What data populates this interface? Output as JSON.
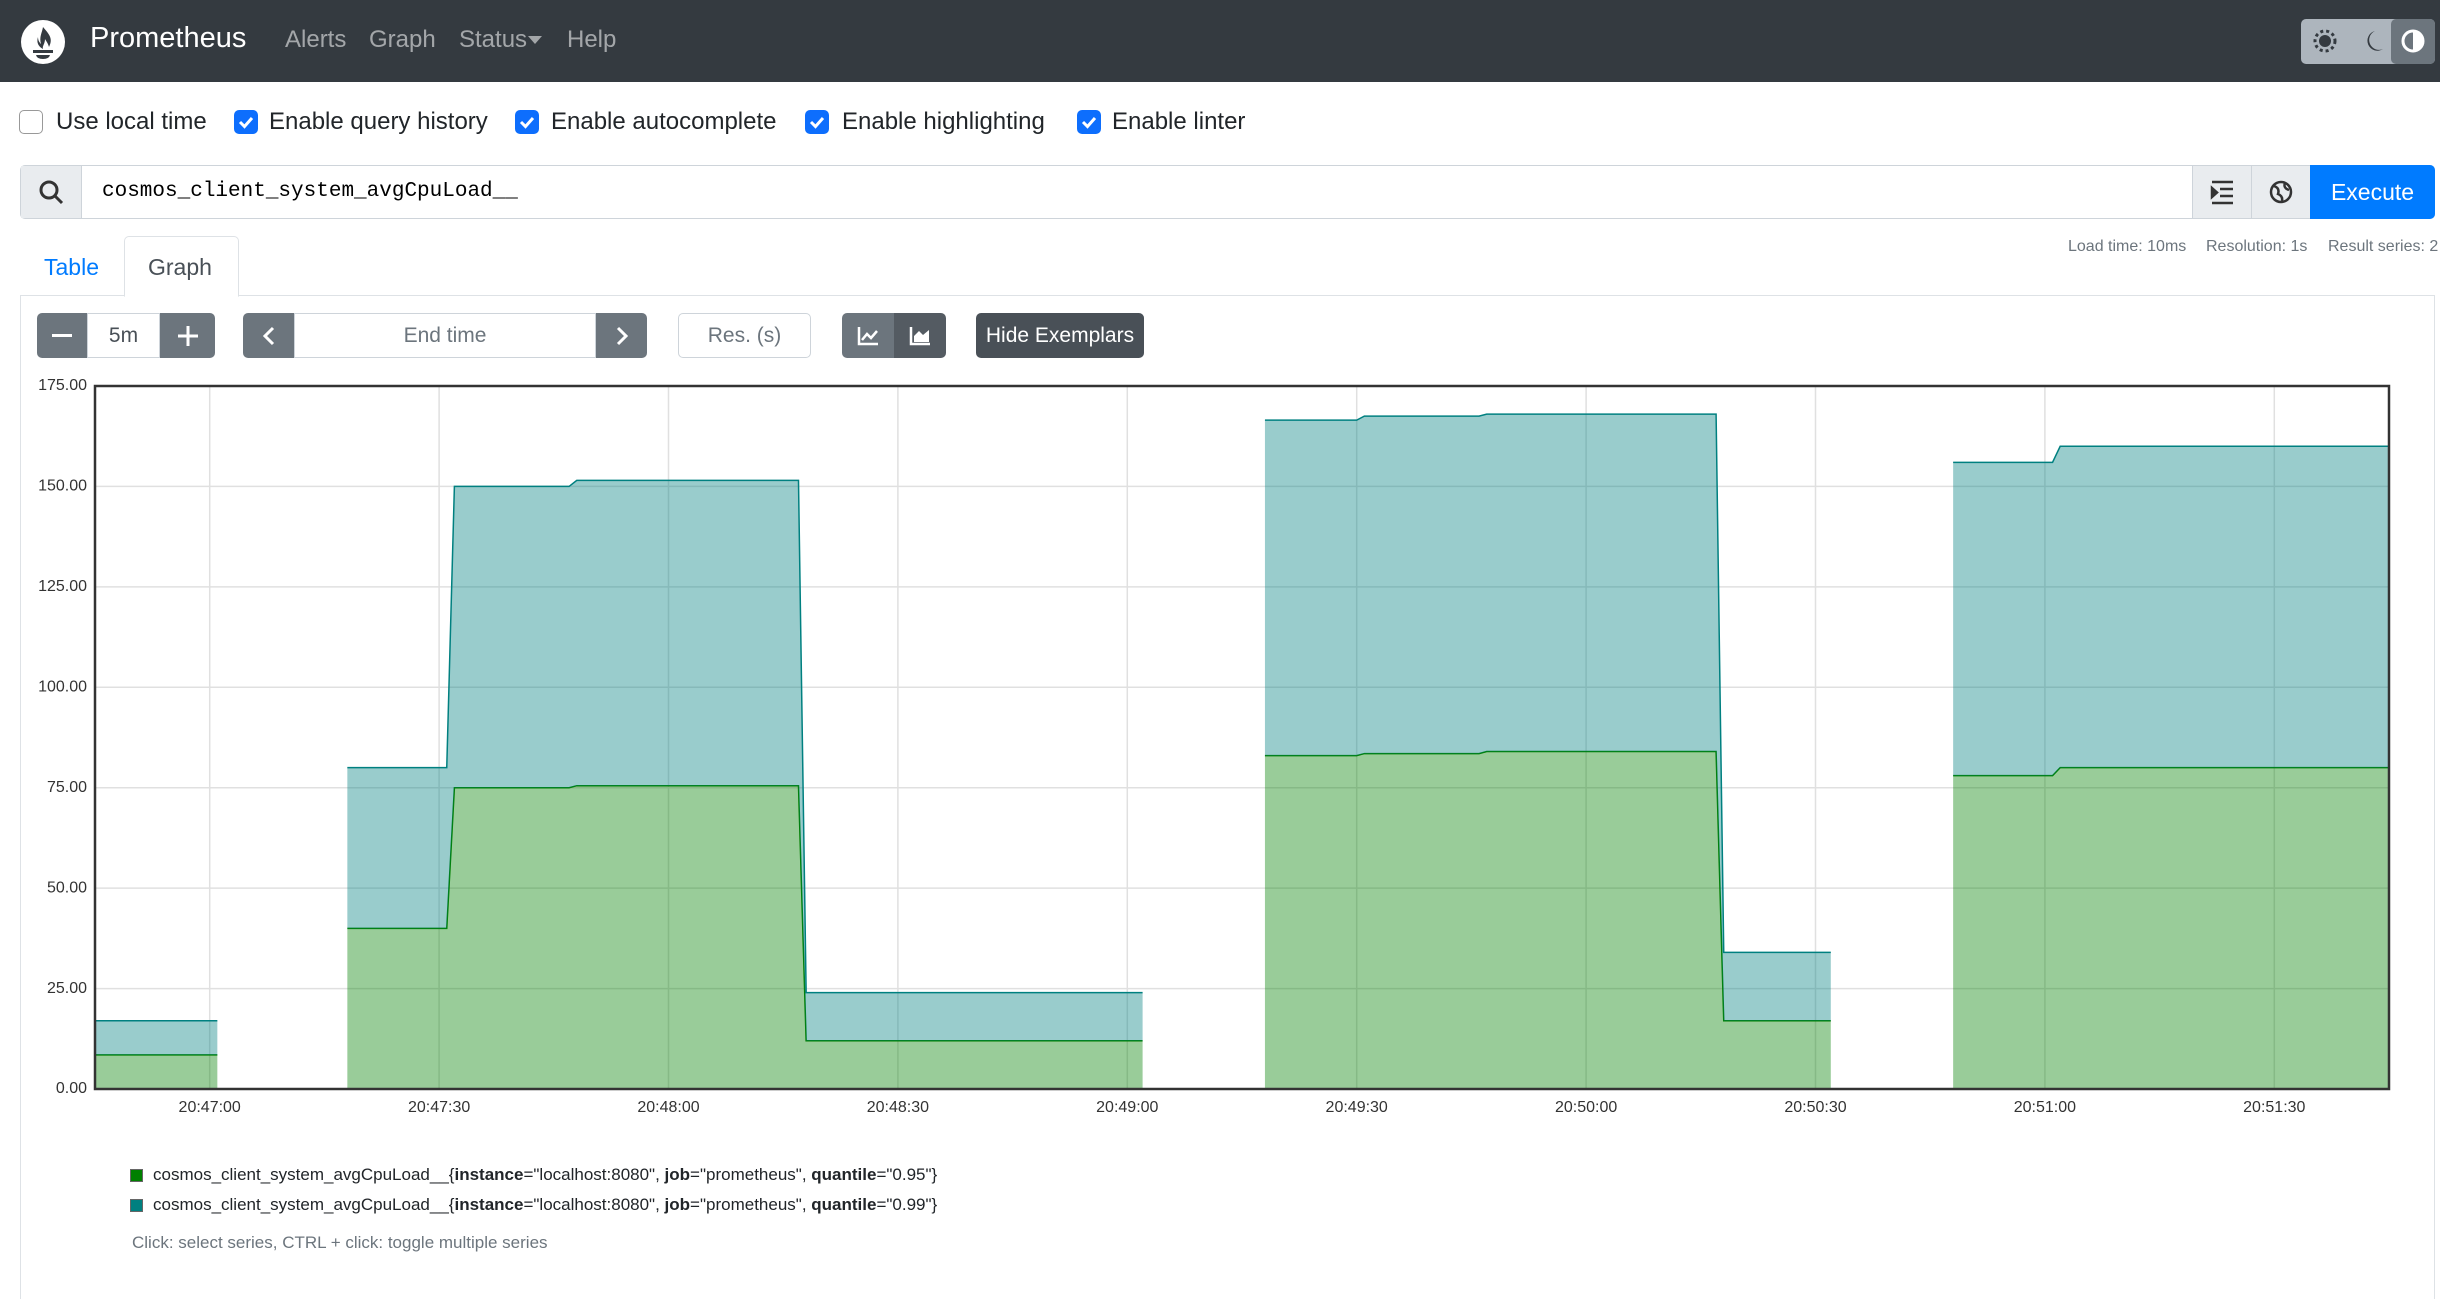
{
  "navbar": {
    "brand": "Prometheus",
    "links": [
      "Alerts",
      "Graph",
      "Status",
      "Help"
    ]
  },
  "options": [
    {
      "label": "Use local time",
      "checked": false
    },
    {
      "label": "Enable query history",
      "checked": true
    },
    {
      "label": "Enable autocomplete",
      "checked": true
    },
    {
      "label": "Enable highlighting",
      "checked": true
    },
    {
      "label": "Enable linter",
      "checked": true
    }
  ],
  "query": {
    "expression": "cosmos_client_system_avgCpuLoad__",
    "execute": "Execute"
  },
  "tabs": [
    "Table",
    "Graph"
  ],
  "stats": [
    "Load time: 10ms",
    "Resolution: 1s",
    "Result series: 2"
  ],
  "controls": {
    "range": "5m",
    "end_time": "End time",
    "resolution": "Res. (s)",
    "exemplars_button": "Hide Exemplars"
  },
  "chart_data": {
    "type": "area",
    "stacked": true,
    "grid": true,
    "x": [
      "20:46:45",
      "20:47:01",
      "20:47:02",
      "20:47:18",
      "20:47:31",
      "20:47:32",
      "20:47:47",
      "20:47:48",
      "20:48:17",
      "20:48:18",
      "20:49:02",
      "20:49:03",
      "20:49:18",
      "20:49:30",
      "20:49:31",
      "20:49:46",
      "20:49:47",
      "20:50:17",
      "20:50:18",
      "20:50:32",
      "20:50:33",
      "20:50:48",
      "20:51:01",
      "20:51:02",
      "20:51:45"
    ],
    "xlim": [
      "20:46:45",
      "20:51:45"
    ],
    "xticks": [
      "20:47:00",
      "20:47:30",
      "20:48:00",
      "20:48:30",
      "20:49:00",
      "20:49:30",
      "20:50:00",
      "20:50:30",
      "20:51:00",
      "20:51:30"
    ],
    "ylim": [
      0,
      175
    ],
    "yticks": [
      {
        "value": 0,
        "label": "0.00"
      },
      {
        "value": 25,
        "label": "25.00"
      },
      {
        "value": 50,
        "label": "50.00"
      },
      {
        "value": 75,
        "label": "75.00"
      },
      {
        "value": 100,
        "label": "100.00"
      },
      {
        "value": 125,
        "label": "125.00"
      },
      {
        "value": 150,
        "label": "150.00"
      },
      {
        "value": 175,
        "label": "175.00"
      }
    ],
    "series": [
      {
        "name": "cosmos_client_system_avgCpuLoad__{instance=\"localhost:8080\", job=\"prometheus\", quantile=\"0.95\"}",
        "color": "#008000",
        "values": [
          8.5,
          8.5,
          null,
          40,
          40,
          75,
          75,
          75.5,
          75.5,
          12,
          12,
          null,
          83,
          83,
          83.5,
          83.5,
          84,
          84,
          17,
          17,
          null,
          78,
          78,
          80,
          80
        ]
      },
      {
        "name": "cosmos_client_system_avgCpuLoad__{instance=\"localhost:8080\", job=\"prometheus\", quantile=\"0.99\"}",
        "color": "#008080",
        "values": [
          8.5,
          8.5,
          null,
          40,
          40,
          75,
          75,
          76,
          76,
          12,
          12,
          null,
          83.5,
          83.5,
          84,
          84,
          84,
          84,
          17,
          17,
          null,
          78,
          78,
          80,
          80
        ]
      }
    ]
  },
  "legend_hint": "Click: select series, CTRL + click: toggle multiple series"
}
